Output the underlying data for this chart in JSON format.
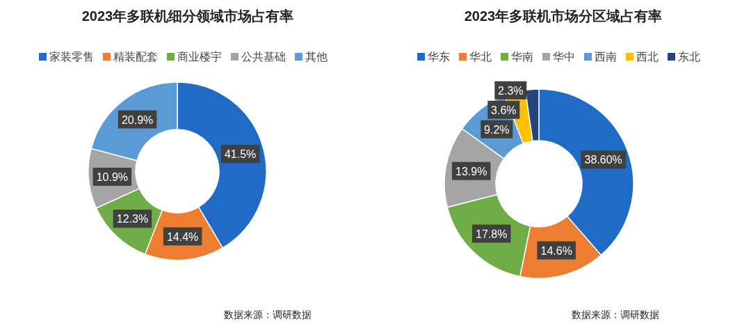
{
  "chart_data": [
    {
      "type": "donut",
      "title": "2023年多联机细分领域市场占有率",
      "categories": [
        "家装零售",
        "精装配套",
        "商业楼宇",
        "公共基础",
        "其他"
      ],
      "values": [
        41.5,
        14.4,
        12.3,
        10.9,
        20.9
      ],
      "colors": [
        "#1f6bc6",
        "#ed7d31",
        "#70ad47",
        "#a5a5a5",
        "#5b9bd5"
      ],
      "value_labels": [
        "41.5%",
        "14.4%",
        "12.3%",
        "10.9%",
        "20.9%"
      ],
      "legend": "top",
      "annotations": [
        "数据来源：调研数据"
      ]
    },
    {
      "type": "donut",
      "title": "2023年多联机市场分区域占有率",
      "categories": [
        "华东",
        "华北",
        "华南",
        "华中",
        "西南",
        "西北",
        "东北"
      ],
      "values": [
        38.6,
        14.6,
        17.8,
        13.9,
        9.2,
        3.6,
        2.3
      ],
      "colors": [
        "#1f6bc6",
        "#ed7d31",
        "#70ad47",
        "#a5a5a5",
        "#5b9bd5",
        "#ffc000",
        "#264478"
      ],
      "value_labels": [
        "38.60%",
        "14.6%",
        "17.8%",
        "13.9%",
        "9.2%",
        "3.6%",
        "2.3%"
      ],
      "legend": "top",
      "annotations": [
        "数据来源：调研数据"
      ]
    }
  ]
}
